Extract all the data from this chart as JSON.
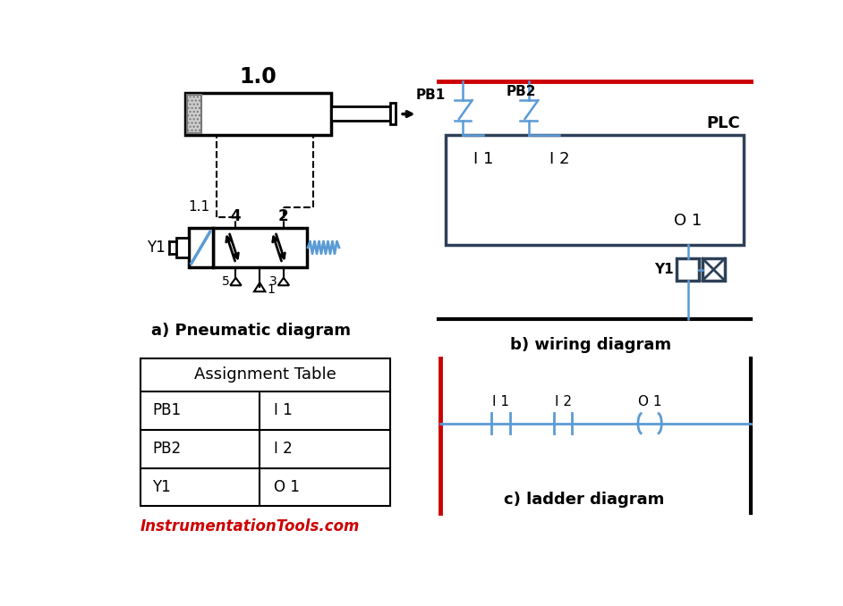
{
  "bg_color": "#ffffff",
  "blue_color": "#5B9BD5",
  "red_color": "#cc0000",
  "black_color": "#000000",
  "dark_blue": "#2E4057",
  "pneumatic_label": "a) Pneumatic diagram",
  "wiring_label": "b) wiring diagram",
  "ladder_label": "c) ladder diagram",
  "website": "InstrumentationTools.com",
  "table_title": "Assignment Table",
  "table_rows": [
    [
      "PB1",
      "I 1"
    ],
    [
      "PB2",
      "I 2"
    ],
    [
      "Y1",
      "O 1"
    ]
  ],
  "cylinder_label": "1.0"
}
